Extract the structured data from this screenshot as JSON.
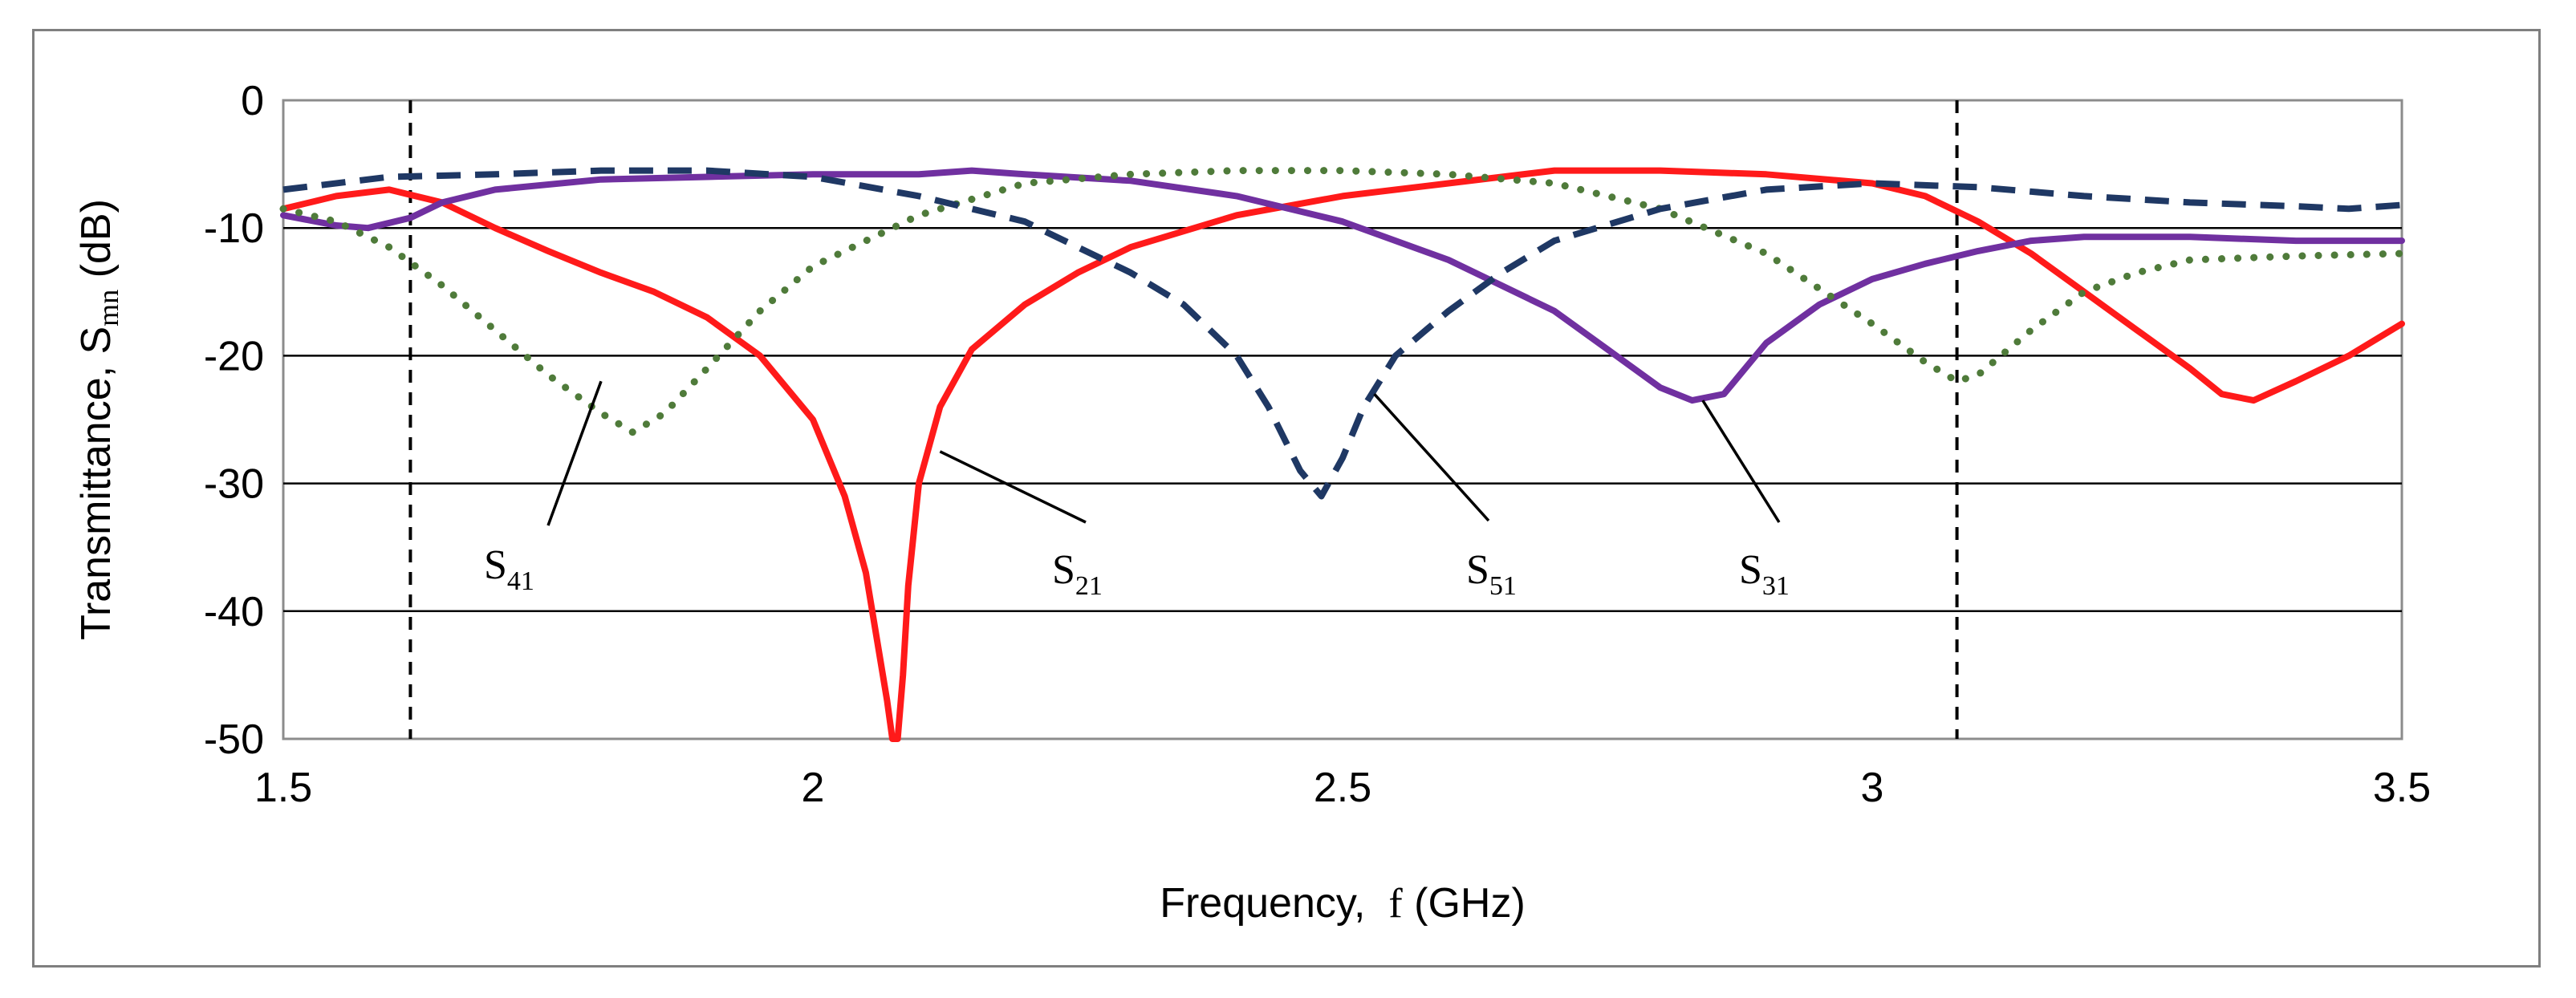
{
  "chart_data": {
    "type": "line",
    "title": "",
    "xlabel": "Frequency,  f (GHz)",
    "xlabel_parts": [
      "Frequency,  ",
      "f",
      " (GHz)"
    ],
    "ylabel": "Transmittance, Smn (dB)",
    "ylabel_parts": [
      "Transmittance, S",
      "mn",
      " (dB)"
    ],
    "xlim": [
      1.5,
      3.5
    ],
    "ylim": [
      -50,
      0
    ],
    "xticks": [
      1.5,
      2,
      2.5,
      3,
      3.5
    ],
    "xtick_labels": [
      "1.5",
      "2",
      "2.5",
      "3",
      "3.5"
    ],
    "yticks": [
      0,
      -10,
      -20,
      -30,
      -40,
      -50
    ],
    "ytick_labels": [
      "0",
      "-10",
      "-20",
      "-30",
      "-40",
      "-50"
    ],
    "grid": "horizontal",
    "vertical_markers": [
      1.62,
      3.08
    ],
    "series": [
      {
        "name": "S21",
        "color": "#ff1a1a",
        "style": "solid",
        "x": [
          1.5,
          1.55,
          1.6,
          1.65,
          1.7,
          1.75,
          1.8,
          1.85,
          1.9,
          1.95,
          2.0,
          2.03,
          2.05,
          2.06,
          2.07,
          2.075,
          2.08,
          2.085,
          2.09,
          2.1,
          2.12,
          2.15,
          2.2,
          2.25,
          2.3,
          2.4,
          2.5,
          2.6,
          2.7,
          2.8,
          2.9,
          3.0,
          3.05,
          3.1,
          3.15,
          3.2,
          3.25,
          3.3,
          3.33,
          3.36,
          3.4,
          3.45,
          3.5
        ],
        "y": [
          -8.5,
          -7.5,
          -7.0,
          -8.0,
          -10.0,
          -11.8,
          -13.5,
          -15.0,
          -17.0,
          -20.0,
          -25.0,
          -31.0,
          -37.0,
          -42.0,
          -47.0,
          -50.0,
          -50.0,
          -45.0,
          -38.0,
          -30.0,
          -24.0,
          -19.5,
          -16.0,
          -13.5,
          -11.5,
          -9.0,
          -7.5,
          -6.5,
          -5.5,
          -5.5,
          -5.8,
          -6.5,
          -7.5,
          -9.5,
          -12.0,
          -15.0,
          -18.0,
          -21.0,
          -23.0,
          -23.5,
          -22.0,
          -20.0,
          -17.5
        ]
      },
      {
        "name": "S31",
        "color": "#7030a0",
        "style": "solid",
        "x": [
          1.5,
          1.55,
          1.58,
          1.62,
          1.65,
          1.7,
          1.8,
          1.9,
          2.0,
          2.1,
          2.15,
          2.2,
          2.3,
          2.4,
          2.5,
          2.6,
          2.7,
          2.75,
          2.8,
          2.83,
          2.86,
          2.9,
          2.95,
          3.0,
          3.05,
          3.1,
          3.15,
          3.2,
          3.3,
          3.4,
          3.5
        ],
        "y": [
          -9.0,
          -9.8,
          -10.0,
          -9.2,
          -8.0,
          -7.0,
          -6.2,
          -6.0,
          -5.8,
          -5.8,
          -5.5,
          -5.8,
          -6.3,
          -7.5,
          -9.5,
          -12.5,
          -16.5,
          -19.5,
          -22.5,
          -23.5,
          -23.0,
          -19.0,
          -16.0,
          -14.0,
          -12.8,
          -11.8,
          -11.0,
          -10.7,
          -10.7,
          -11.0,
          -11.0
        ]
      },
      {
        "name": "S41",
        "color": "#4f7b3a",
        "style": "dotted",
        "x": [
          1.5,
          1.55,
          1.6,
          1.65,
          1.7,
          1.75,
          1.8,
          1.83,
          1.86,
          1.9,
          1.95,
          2.0,
          2.1,
          2.2,
          2.3,
          2.4,
          2.5,
          2.6,
          2.7,
          2.8,
          2.9,
          3.0,
          3.05,
          3.08,
          3.1,
          3.15,
          3.2,
          3.25,
          3.3,
          3.4,
          3.5
        ],
        "y": [
          -8.5,
          -9.5,
          -11.5,
          -14.5,
          -18.0,
          -21.5,
          -24.5,
          -26.0,
          -24.5,
          -21.0,
          -16.5,
          -13.0,
          -9.0,
          -6.5,
          -5.8,
          -5.5,
          -5.5,
          -5.8,
          -6.5,
          -8.5,
          -12.0,
          -17.5,
          -20.5,
          -22.0,
          -21.5,
          -18.0,
          -15.0,
          -13.5,
          -12.5,
          -12.2,
          -12.0
        ]
      },
      {
        "name": "S51",
        "color": "#1f3864",
        "style": "dashed",
        "x": [
          1.5,
          1.6,
          1.7,
          1.8,
          1.9,
          2.0,
          2.1,
          2.2,
          2.25,
          2.3,
          2.35,
          2.4,
          2.43,
          2.46,
          2.48,
          2.5,
          2.52,
          2.55,
          2.6,
          2.65,
          2.7,
          2.8,
          2.9,
          3.0,
          3.1,
          3.2,
          3.3,
          3.4,
          3.45,
          3.5
        ],
        "y": [
          -7.0,
          -6.0,
          -5.8,
          -5.5,
          -5.5,
          -6.0,
          -7.5,
          -9.5,
          -11.5,
          -13.5,
          -16.0,
          -20.0,
          -24.0,
          -29.0,
          -31.0,
          -28.0,
          -24.0,
          -20.0,
          -16.5,
          -13.5,
          -11.0,
          -8.5,
          -7.0,
          -6.5,
          -6.8,
          -7.5,
          -8.0,
          -8.3,
          -8.5,
          -8.2
        ]
      }
    ],
    "annotations": [
      {
        "series": "S41",
        "label_main": "S",
        "label_sub": "41",
        "point": [
          1.8,
          -22.0
        ]
      },
      {
        "series": "S21",
        "label_main": "S",
        "label_sub": "21",
        "point": [
          2.12,
          -27.5
        ]
      },
      {
        "series": "S51",
        "label_main": "S",
        "label_sub": "51",
        "point": [
          2.53,
          -23.0
        ]
      },
      {
        "series": "S31",
        "label_main": "S",
        "label_sub": "31",
        "point": [
          2.84,
          -23.5
        ]
      }
    ]
  }
}
